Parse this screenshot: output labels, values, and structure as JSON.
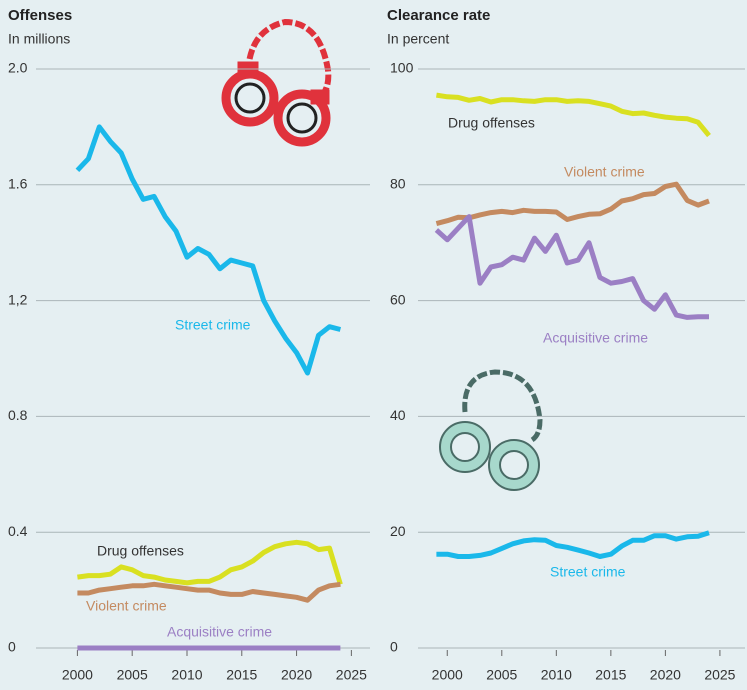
{
  "chart_data": [
    {
      "type": "line",
      "title": "Offenses",
      "subtitle": "In millions",
      "x": [
        2000,
        2001,
        2002,
        2003,
        2004,
        2005,
        2006,
        2007,
        2008,
        2009,
        2010,
        2011,
        2012,
        2013,
        2014,
        2015,
        2016,
        2017,
        2018,
        2019,
        2020,
        2021,
        2022,
        2023,
        2024
      ],
      "series": [
        {
          "name": "Street crime",
          "color": "#1ab8ea",
          "values": [
            1.65,
            1.69,
            1.8,
            1.75,
            1.71,
            1.62,
            1.55,
            1.56,
            1.49,
            1.44,
            1.35,
            1.38,
            1.36,
            1.31,
            1.34,
            1.33,
            1.32,
            1.2,
            1.13,
            1.07,
            1.02,
            0.95,
            1.08,
            1.11,
            1.1
          ]
        },
        {
          "name": "Drug offenses",
          "color": "#d9e021",
          "values": [
            0.245,
            0.25,
            0.25,
            0.255,
            0.28,
            0.27,
            0.25,
            0.245,
            0.235,
            0.23,
            0.225,
            0.23,
            0.23,
            0.245,
            0.27,
            0.28,
            0.3,
            0.33,
            0.35,
            0.36,
            0.365,
            0.36,
            0.34,
            0.345,
            0.22
          ]
        },
        {
          "name": "Violent crime",
          "color": "#c48a60",
          "values": [
            0.19,
            0.19,
            0.2,
            0.205,
            0.21,
            0.215,
            0.215,
            0.22,
            0.215,
            0.21,
            0.205,
            0.2,
            0.2,
            0.19,
            0.185,
            0.185,
            0.195,
            0.19,
            0.185,
            0.18,
            0.175,
            0.165,
            0.2,
            0.215,
            0.22
          ]
        },
        {
          "name": "Acquisitive crime",
          "color": "#9b7fc4",
          "values": [
            0,
            0,
            0,
            0,
            0,
            0,
            0,
            0,
            0,
            0,
            0,
            0,
            0,
            0,
            0,
            0,
            0,
            0,
            0,
            0,
            0,
            0,
            0,
            0,
            0
          ]
        }
      ],
      "xlim": [
        1997.5,
        2026.7
      ],
      "xticks": [
        2000,
        2005,
        2010,
        2015,
        2020,
        2025
      ],
      "ylim": [
        0,
        2
      ],
      "yticks": [
        0,
        0.4,
        0.8,
        {
          "value": 1.2,
          "label": "1,2"
        },
        1.6,
        {
          "value": 2,
          "label": "2.0"
        }
      ],
      "grid": true
    },
    {
      "type": "line",
      "title": "Clearance rate",
      "subtitle": "In percent",
      "x": [
        1999,
        2000,
        2001,
        2002,
        2003,
        2004,
        2005,
        2006,
        2007,
        2008,
        2009,
        2010,
        2011,
        2012,
        2013,
        2014,
        2015,
        2016,
        2017,
        2018,
        2019,
        2020,
        2021,
        2022,
        2023,
        2024
      ],
      "series": [
        {
          "name": "Drug offenses",
          "color": "#d9e021",
          "values": [
            95.5,
            95.2,
            95.1,
            94.6,
            94.9,
            94.3,
            94.7,
            94.7,
            94.5,
            94.4,
            94.7,
            94.7,
            94.4,
            94.5,
            94.4,
            94.0,
            93.6,
            92.7,
            92.3,
            92.4,
            92.0,
            91.7,
            91.5,
            91.4,
            90.8,
            88.5
          ]
        },
        {
          "name": "Violent crime",
          "color": "#c48a60",
          "values": [
            73.3,
            73.8,
            74.4,
            74.3,
            74.8,
            75.2,
            75.4,
            75.2,
            75.6,
            75.4,
            75.4,
            75.3,
            74.0,
            74.5,
            74.9,
            75.0,
            75.8,
            77.2,
            77.6,
            78.3,
            78.5,
            79.7,
            80.1,
            77.3,
            76.5,
            77.2
          ]
        },
        {
          "name": "Acquisitive crime",
          "color": "#9b7fc4",
          "values": [
            72.2,
            70.5,
            72.5,
            74.5,
            63.0,
            65.8,
            66.2,
            67.5,
            67.0,
            70.8,
            68.5,
            71.3,
            66.5,
            67.0,
            70.0,
            64.0,
            63.0,
            63.3,
            63.8,
            60.0,
            58.5,
            61.0,
            57.5,
            57.1,
            57.2,
            57.2
          ]
        },
        {
          "name": "Street crime",
          "color": "#1ab8ea",
          "values": [
            16.2,
            16.2,
            15.8,
            15.8,
            16.0,
            16.4,
            17.2,
            18.0,
            18.5,
            18.7,
            18.6,
            17.7,
            17.4,
            16.9,
            16.4,
            15.8,
            16.2,
            17.6,
            18.6,
            18.6,
            19.4,
            19.4,
            18.8,
            19.2,
            19.3,
            19.9
          ]
        }
      ],
      "xlim": [
        1996.4,
        2027.3
      ],
      "xticks": [
        2000,
        2005,
        2010,
        2015,
        2020,
        2025
      ],
      "ylim": [
        0,
        100
      ],
      "yticks": [
        0,
        20,
        40,
        60,
        80,
        100
      ],
      "grid": true
    }
  ]
}
